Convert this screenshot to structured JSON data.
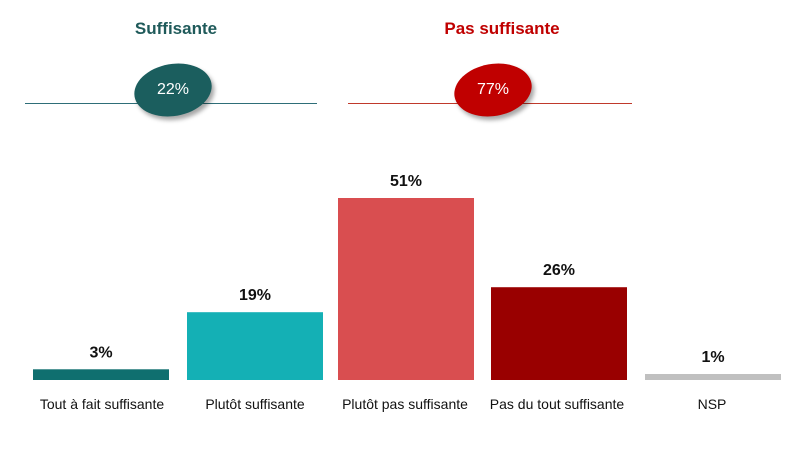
{
  "groups": {
    "left": {
      "title": "Suffisante",
      "value": "22%",
      "color": "#1b5e5e"
    },
    "right": {
      "title": "Pas suffisante",
      "value": "77%",
      "color": "#c00000"
    }
  },
  "chart_data": {
    "type": "bar",
    "title": "",
    "xlabel": "",
    "ylabel": "",
    "categories": [
      "Tout à fait suffisante",
      "Plutôt suffisante",
      "Plutôt pas suffisante",
      "Pas du tout suffisante",
      "NSP"
    ],
    "values": [
      3,
      19,
      51,
      26,
      1
    ],
    "value_labels": [
      "3%",
      "19%",
      "51%",
      "26%",
      "1%"
    ],
    "colors": [
      "#0f6f6f",
      "#14b0b5",
      "#d94e50",
      "#990000",
      "#c0c0c0"
    ],
    "ylim": [
      0,
      51
    ]
  }
}
